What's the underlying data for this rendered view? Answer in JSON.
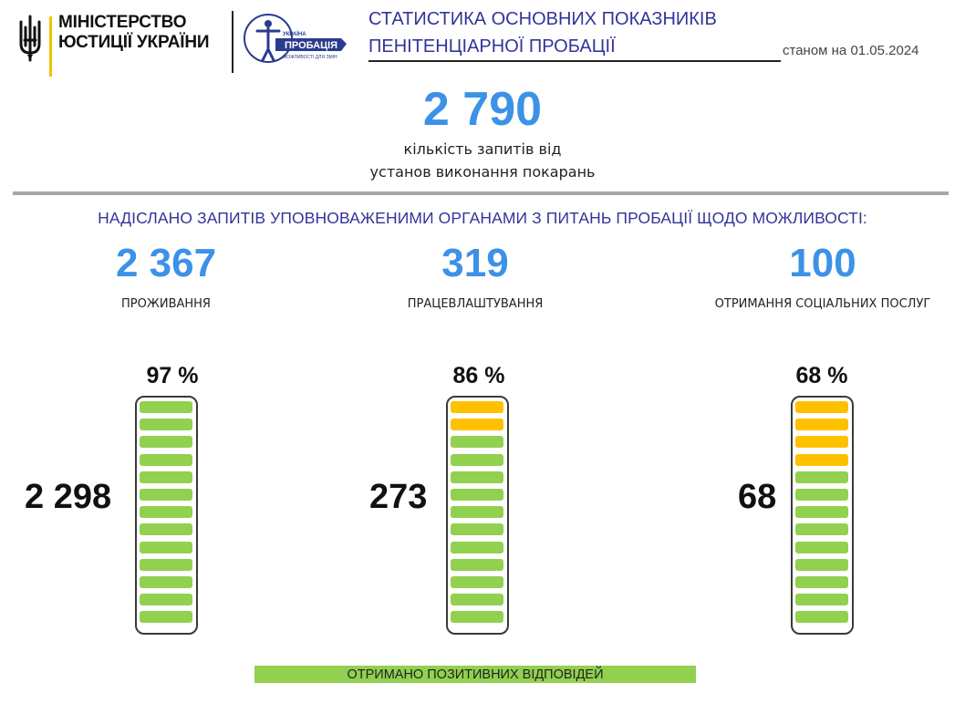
{
  "header": {
    "ministry_line1": "МІНІСТЕРСТВО",
    "ministry_line2": "ЮСТИЦІЇ УКРАЇНИ",
    "probation_logo_line1": "УКРАЇНА",
    "probation_logo_line2": "ПРОБАЦІЯ",
    "probation_logo_line3": "МОЖЛИВОСТІ ДЛЯ ЗМІН",
    "title_line1": "СТАТИСТИКА ОСНОВНИХ ПОКАЗНИКІВ",
    "title_line2": "ПЕНІТЕНЦІАРНОЇ ПРОБАЦІЇ",
    "date": "станом на 01.05.2024"
  },
  "summary": {
    "total": "2 790",
    "caption_line1": "кількість запитів від",
    "caption_line2": "установ виконання покарань"
  },
  "section_title": "НАДІСЛАНО ЗАПИТІВ УПОВНОВАЖЕНИМИ ОРГАНАМИ З ПИТАНЬ ПРОБАЦІЇ  ЩОДО МОЖЛИВОСТІ:",
  "columns": [
    {
      "value": "2 367",
      "label": "ПРОЖИВАННЯ",
      "percent": "97 %",
      "positive": "2 298",
      "fill_fraction": 0.97
    },
    {
      "value": "319",
      "label": "ПРАЦЕВЛАШТУВАННЯ",
      "percent": "86 %",
      "positive": "273",
      "fill_fraction": 0.86
    },
    {
      "value": "100",
      "label": "ОТРИМАННЯ  СОЦІАЛЬНИХ ПОСЛУГ",
      "percent": "68 %",
      "positive": "68",
      "fill_fraction": 0.68
    }
  ],
  "legend": "ОТРИМАНО  ПОЗИТИВНИХ ВІДПОВІДЕЙ",
  "colors": {
    "accent_blue": "#3c92e6",
    "title_navy": "#33349a",
    "positive_green": "#92d050",
    "remaining_yellow": "#ffc000",
    "flag_yellow": "#f2c200"
  },
  "icons": [
    "trident-icon",
    "probation-logo-icon"
  ]
}
